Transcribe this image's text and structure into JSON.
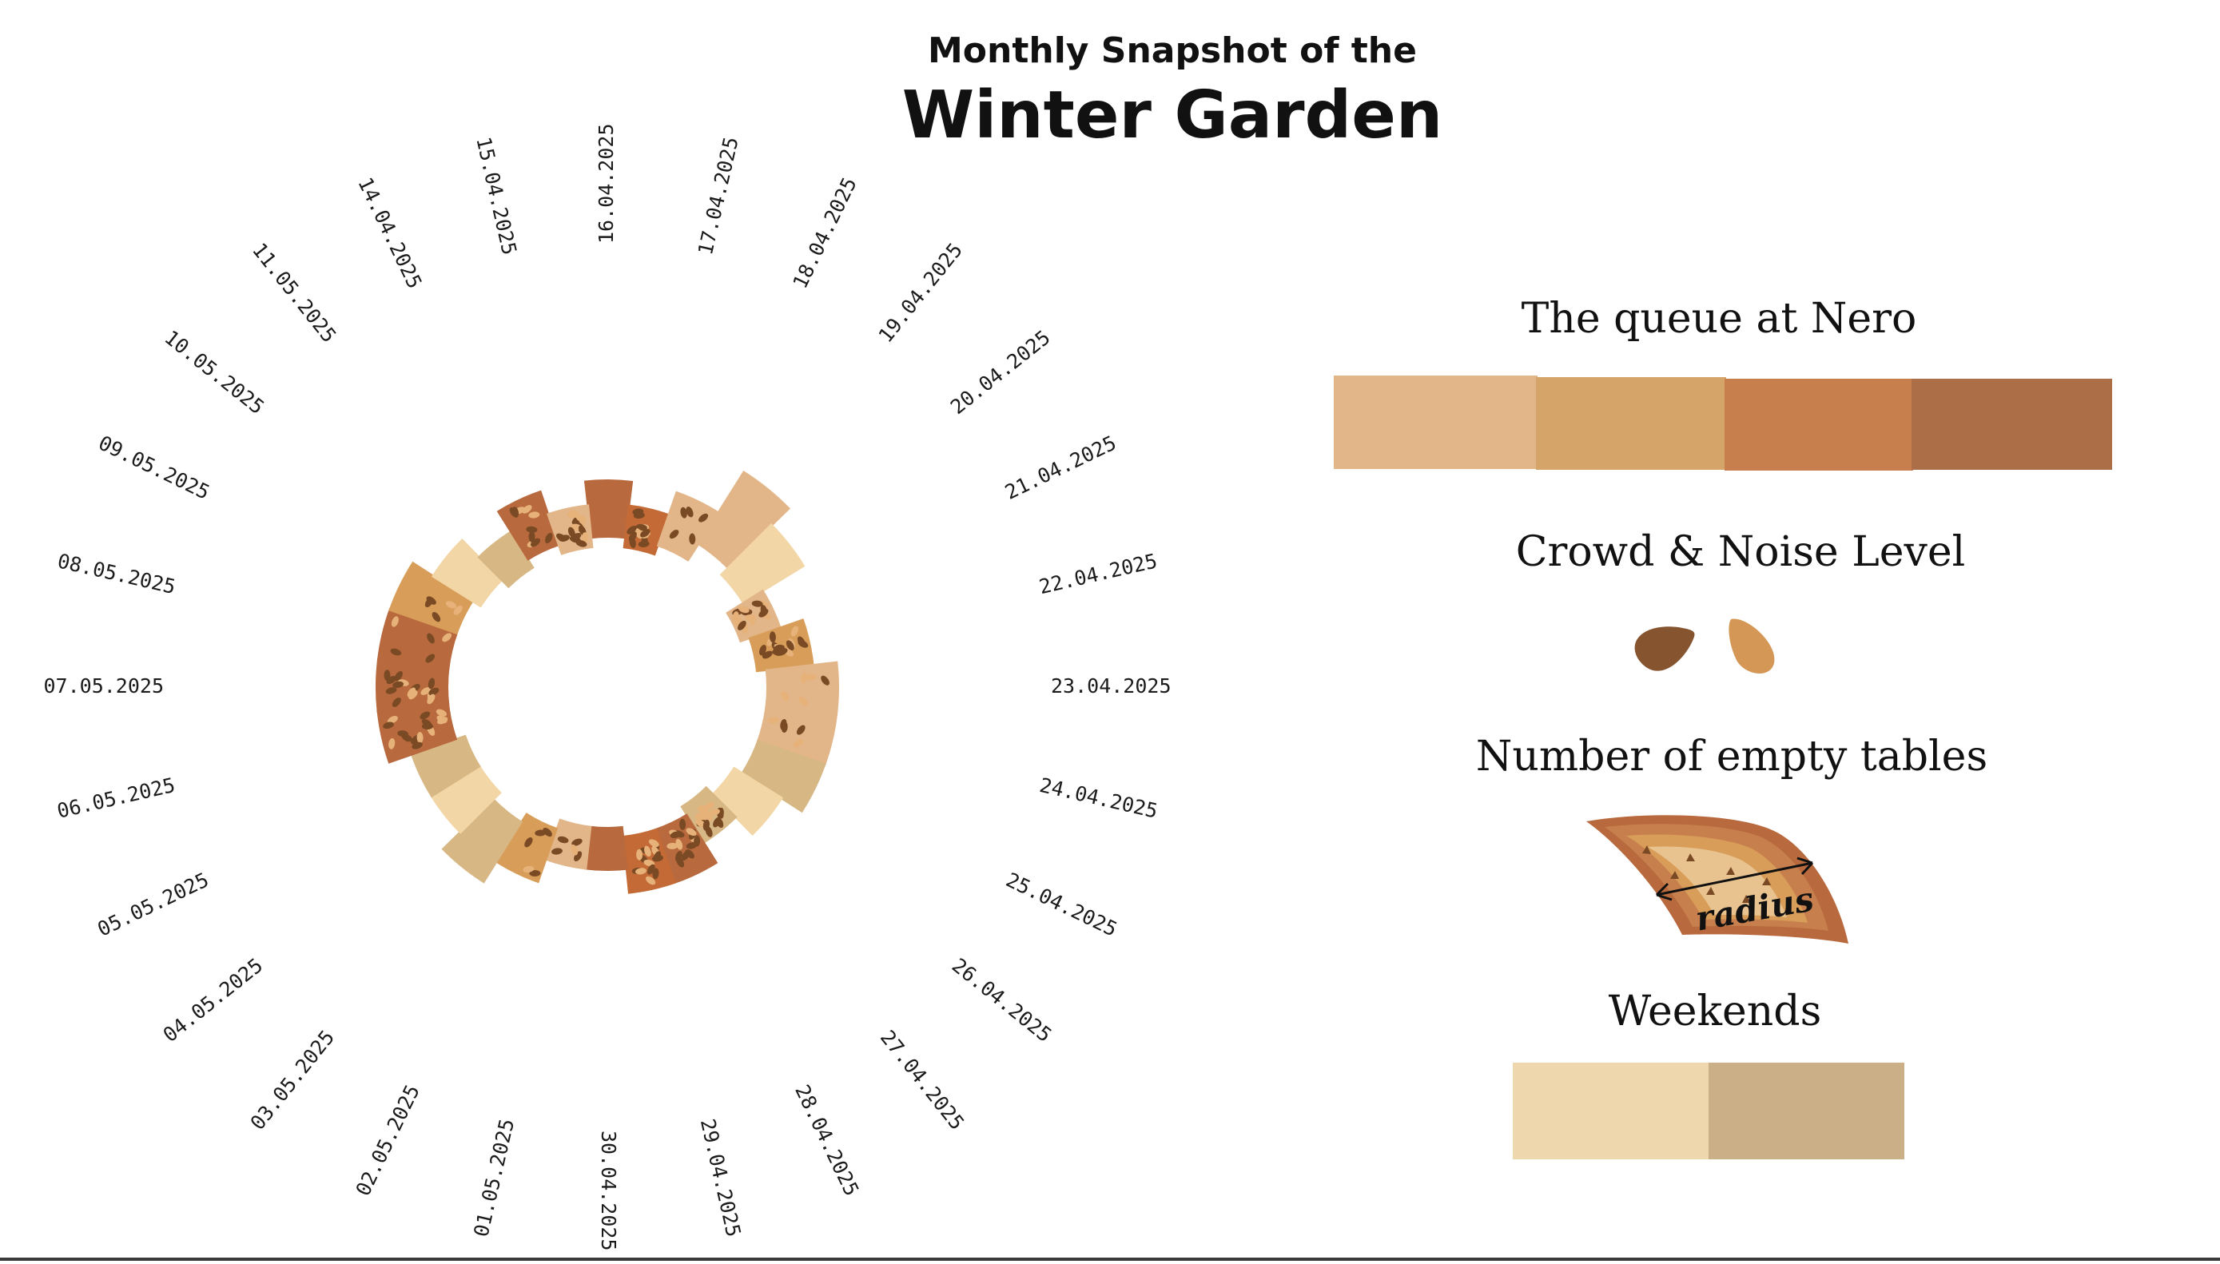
{
  "title": {
    "subtitle": "Monthly Snapshot of the",
    "main": "Winter Garden"
  },
  "chart_data": {
    "type": "radial-bar",
    "center_label": "",
    "categories": [
      "16.04.2025",
      "17.04.2025",
      "18.04.2025",
      "19.04.2025",
      "20.04.2025",
      "21.04.2025",
      "22.04.2025",
      "23.04.2025",
      "24.04.2025",
      "25.04.2025",
      "26.04.2025",
      "27.04.2025",
      "28.04.2025",
      "29.04.2025",
      "30.04.2025",
      "01.05.2025",
      "02.05.2025",
      "03.05.2025",
      "04.05.2025",
      "05.05.2025",
      "06.05.2025",
      "07.05.2025",
      "08.05.2025",
      "09.05.2025",
      "10.05.2025",
      "11.05.2025",
      "14.04.2025",
      "15.04.2025"
    ],
    "series": [
      {
        "name": "Number of empty tables",
        "values": [
          5,
          4,
          5,
          7,
          6,
          4,
          5,
          6,
          6,
          6,
          5,
          4,
          5,
          5,
          4,
          4,
          5,
          6,
          5,
          5,
          6,
          6,
          6,
          6,
          5,
          4,
          5,
          4
        ]
      },
      {
        "name": "The queue at Nero",
        "values": [
          4,
          3,
          1,
          1,
          2,
          1,
          2,
          1,
          1,
          1,
          2,
          4,
          4,
          3,
          4,
          1,
          2,
          1,
          2,
          1,
          4,
          4,
          4,
          2,
          1,
          2,
          4,
          1
        ]
      },
      {
        "name": "Crowd & Noise Level",
        "values": [
          0,
          3,
          1,
          0,
          0,
          3,
          3,
          1,
          1,
          0,
          0,
          3,
          3,
          3,
          0,
          1,
          1,
          0,
          0,
          0,
          3,
          3,
          1,
          1,
          0,
          0,
          2,
          3
        ]
      },
      {
        "name": "Weekends",
        "values": [
          0,
          0,
          0,
          0,
          1,
          0,
          0,
          0,
          0,
          1,
          1,
          1,
          0,
          0,
          0,
          0,
          0,
          1,
          1,
          1,
          0,
          0,
          0,
          0,
          1,
          1,
          0,
          0
        ]
      }
    ]
  },
  "legend": {
    "queue": {
      "title": "The queue at Nero",
      "colors": [
        "#e2b688",
        "#d4a468",
        "#c7804d",
        "#ab6e47"
      ]
    },
    "crowd": {
      "title": "Crowd & Noise Level",
      "colors": [
        "#865530",
        "#d59755"
      ]
    },
    "tables": {
      "title": "Number of empty tables",
      "radius_label": "radius"
    },
    "weekends": {
      "title": "Weekends",
      "colors": [
        "#efd7ad",
        "#cbb087"
      ]
    }
  },
  "palette": {
    "queue_levels": [
      "#f3d6a6",
      "#e2b688",
      "#d89d58",
      "#c36a36",
      "#b8693d"
    ],
    "weekend_colors": [
      "#f3d6a6",
      "#d7b784"
    ],
    "seed_dark": "#7a4a25",
    "seed_light": "#e6b27a"
  }
}
